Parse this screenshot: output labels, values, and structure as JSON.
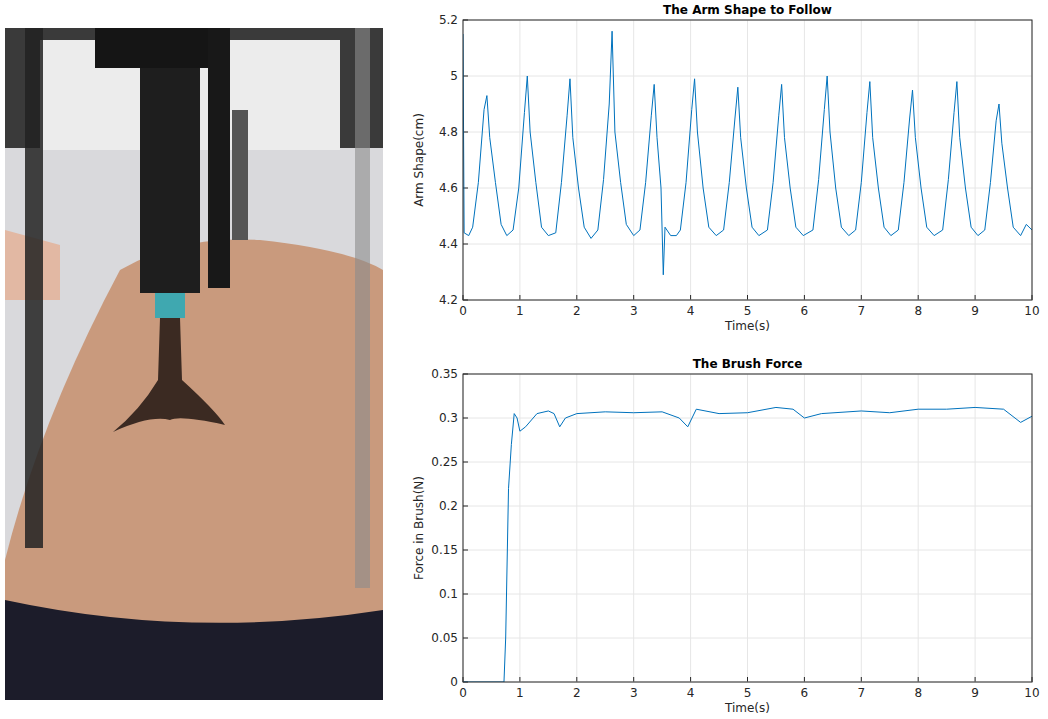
{
  "chart_data": [
    {
      "type": "line",
      "title": "The Arm Shape to Follow",
      "x_label": "Time(s)",
      "y_label": "Arm Shape(cm)",
      "x": [
        0,
        0.02,
        0.1,
        0.17,
        0.27,
        0.37,
        0.42,
        0.47,
        0.57,
        0.67,
        0.77,
        0.88,
        0.98,
        1.08,
        1.13,
        1.18,
        1.28,
        1.38,
        1.5,
        1.63,
        1.73,
        1.83,
        1.88,
        1.93,
        2.03,
        2.13,
        2.25,
        2.37,
        2.47,
        2.57,
        2.62,
        2.67,
        2.77,
        2.87,
        3.0,
        3.11,
        3.21,
        3.31,
        3.36,
        3.41,
        3.48,
        3.52,
        3.55,
        3.65,
        3.75,
        3.82,
        3.92,
        4.02,
        4.07,
        4.12,
        4.22,
        4.32,
        4.45,
        4.58,
        4.68,
        4.78,
        4.83,
        4.88,
        4.98,
        5.08,
        5.2,
        5.35,
        5.45,
        5.55,
        5.6,
        5.65,
        5.75,
        5.85,
        5.98,
        6.15,
        6.25,
        6.35,
        6.4,
        6.45,
        6.55,
        6.65,
        6.78,
        6.9,
        7.0,
        7.1,
        7.15,
        7.2,
        7.3,
        7.4,
        7.52,
        7.65,
        7.75,
        7.85,
        7.9,
        7.95,
        8.05,
        8.15,
        8.28,
        8.43,
        8.53,
        8.63,
        8.68,
        8.73,
        8.83,
        8.93,
        9.05,
        9.17,
        9.27,
        9.37,
        9.42,
        9.47,
        9.57,
        9.67,
        9.8,
        9.9,
        10
      ],
      "series": [
        {
          "color": "#0072bd",
          "values": [
            5.15,
            4.44,
            4.43,
            4.46,
            4.62,
            4.88,
            4.93,
            4.78,
            4.62,
            4.47,
            4.43,
            4.45,
            4.6,
            4.87,
            5.0,
            4.8,
            4.62,
            4.46,
            4.43,
            4.44,
            4.62,
            4.86,
            4.99,
            4.78,
            4.6,
            4.46,
            4.42,
            4.45,
            4.63,
            4.9,
            5.16,
            4.8,
            4.62,
            4.47,
            4.43,
            4.45,
            4.62,
            4.86,
            4.97,
            4.78,
            4.6,
            4.29,
            4.46,
            4.43,
            4.43,
            4.45,
            4.62,
            4.88,
            4.99,
            4.8,
            4.6,
            4.46,
            4.43,
            4.45,
            4.62,
            4.85,
            4.96,
            4.78,
            4.6,
            4.46,
            4.43,
            4.45,
            4.62,
            4.86,
            4.97,
            4.78,
            4.6,
            4.46,
            4.43,
            4.45,
            4.63,
            4.88,
            5.0,
            4.8,
            4.6,
            4.46,
            4.43,
            4.45,
            4.62,
            4.87,
            4.98,
            4.78,
            4.6,
            4.46,
            4.43,
            4.45,
            4.62,
            4.85,
            4.95,
            4.78,
            4.6,
            4.46,
            4.43,
            4.45,
            4.63,
            4.87,
            4.98,
            4.78,
            4.6,
            4.46,
            4.43,
            4.45,
            4.62,
            4.84,
            4.9,
            4.76,
            4.6,
            4.46,
            4.43,
            4.47,
            4.45
          ]
        }
      ],
      "xlim": [
        0,
        10
      ],
      "xticks": [
        0,
        1,
        2,
        3,
        4,
        5,
        6,
        7,
        8,
        9,
        10
      ],
      "ylim": [
        4.2,
        5.2
      ],
      "yticks": [
        4.2,
        4.4,
        4.6,
        4.8,
        5,
        5.2
      ],
      "grid": true
    },
    {
      "type": "line",
      "title": "The Brush Force",
      "x_label": "Time(s)",
      "y_label": "Force in Brush(N)",
      "x": [
        0,
        0.72,
        0.75,
        0.8,
        0.85,
        0.9,
        0.95,
        1.0,
        1.1,
        1.3,
        1.5,
        1.6,
        1.7,
        1.8,
        2.0,
        2.5,
        3.0,
        3.5,
        3.8,
        3.95,
        4.1,
        4.5,
        5.0,
        5.5,
        5.8,
        6.0,
        6.3,
        7.0,
        7.5,
        8.0,
        8.5,
        9.0,
        9.5,
        9.8,
        10
      ],
      "series": [
        {
          "color": "#0072bd",
          "values": [
            0,
            0,
            0.05,
            0.22,
            0.27,
            0.305,
            0.3,
            0.285,
            0.29,
            0.305,
            0.308,
            0.305,
            0.29,
            0.3,
            0.305,
            0.307,
            0.306,
            0.307,
            0.3,
            0.29,
            0.31,
            0.305,
            0.306,
            0.312,
            0.31,
            0.3,
            0.305,
            0.308,
            0.306,
            0.31,
            0.31,
            0.312,
            0.31,
            0.295,
            0.302
          ]
        }
      ],
      "xlim": [
        0,
        10
      ],
      "xticks": [
        0,
        1,
        2,
        3,
        4,
        5,
        6,
        7,
        8,
        9,
        10
      ],
      "ylim": [
        0,
        0.35
      ],
      "yticks": [
        0,
        0.05,
        0.1,
        0.15,
        0.2,
        0.25,
        0.3,
        0.35
      ],
      "grid": true
    }
  ]
}
